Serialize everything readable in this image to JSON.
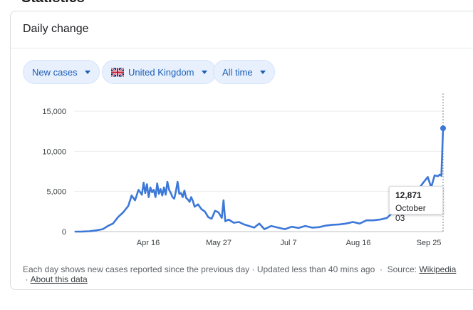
{
  "page": {
    "heading": "Statistics"
  },
  "card": {
    "title": "Daily change"
  },
  "filters": {
    "metric": "New cases",
    "location": "United Kingdom",
    "range": "All time"
  },
  "tooltip": {
    "value": "12,871",
    "date": "October 03"
  },
  "footer": {
    "text": "Each day shows new cases reported since the previous day · Updated less than 40 mins ago",
    "source_label": "Source:",
    "source_link": "Wikipedia",
    "about_link": "About this data"
  },
  "colors": {
    "line": "#3c78d8",
    "chip_bg": "#e8f0fe",
    "chip_text": "#1a5fb4"
  },
  "chart_data": {
    "type": "line",
    "title": "",
    "xlabel": "",
    "ylabel": "",
    "ylim": [
      0,
      15000
    ],
    "yticks": [
      0,
      5000,
      10000,
      15000
    ],
    "ytick_labels": [
      "0",
      "5,000",
      "10,000",
      "15,000"
    ],
    "xtick_labels": [
      "Apr 16",
      "May 27",
      "Jul 7",
      "Aug 16",
      "Sep 25"
    ],
    "grid": true,
    "series": [
      {
        "name": "",
        "x": [
          "Mar 01",
          "Mar 05",
          "Mar 09",
          "Mar 13",
          "Mar 17",
          "Mar 20",
          "Mar 23",
          "Mar 26",
          "Mar 29",
          "Apr 01",
          "Apr 03",
          "Apr 05",
          "Apr 07",
          "Apr 09",
          "Apr 10",
          "Apr 11",
          "Apr 12",
          "Apr 13",
          "Apr 14",
          "Apr 15",
          "Apr 16",
          "Apr 17",
          "Apr 18",
          "Apr 19",
          "Apr 20",
          "Apr 21",
          "Apr 22",
          "Apr 23",
          "Apr 24",
          "Apr 25",
          "Apr 26",
          "Apr 27",
          "Apr 28",
          "Apr 29",
          "Apr 30",
          "May 01",
          "May 02",
          "May 03",
          "May 04",
          "May 05",
          "May 06",
          "May 07",
          "May 08",
          "May 09",
          "May 10",
          "May 12",
          "May 14",
          "May 16",
          "May 18",
          "May 20",
          "May 22",
          "May 24",
          "May 26",
          "May 27",
          "May 28",
          "May 30",
          "Jun 02",
          "Jun 05",
          "Jun 08",
          "Jun 11",
          "Jun 14",
          "Jun 17",
          "Jun 20",
          "Jun 24",
          "Jun 28",
          "Jul 02",
          "Jul 06",
          "Jul 10",
          "Jul 14",
          "Jul 18",
          "Jul 22",
          "Jul 26",
          "Jul 30",
          "Aug 03",
          "Aug 07",
          "Aug 11",
          "Aug 15",
          "Aug 19",
          "Aug 23",
          "Aug 27",
          "Aug 31",
          "Sep 04",
          "Sep 08",
          "Sep 12",
          "Sep 15",
          "Sep 18",
          "Sep 21",
          "Sep 24",
          "Sep 26",
          "Sep 28",
          "Sep 30",
          "Oct 01",
          "Oct 02",
          "Oct 03"
        ],
        "values": [
          0,
          10,
          40,
          150,
          300,
          700,
          1000,
          1800,
          2400,
          3200,
          4500,
          3900,
          5200,
          4600,
          6100,
          4800,
          5900,
          4300,
          5500,
          4900,
          5200,
          4300,
          6000,
          4700,
          5300,
          4500,
          5500,
          4600,
          6200,
          5200,
          4800,
          4300,
          4100,
          5000,
          6200,
          4700,
          4800,
          4300,
          5100,
          4200,
          4000,
          3700,
          4300,
          3800,
          3100,
          3400,
          2800,
          2500,
          1800,
          1600,
          2600,
          2400,
          1700,
          3900,
          1300,
          1500,
          1100,
          1200,
          900,
          700,
          500,
          1000,
          300,
          700,
          500,
          300,
          600,
          450,
          700,
          500,
          550,
          750,
          850,
          900,
          1000,
          1200,
          1000,
          1400,
          1400,
          1500,
          1700,
          2500,
          3300,
          3500,
          4300,
          5100,
          6000,
          6800,
          5500,
          7000,
          6900,
          7100,
          6950,
          12871
        ]
      }
    ],
    "highlight": {
      "x": "Oct 03",
      "value": 12871
    }
  }
}
